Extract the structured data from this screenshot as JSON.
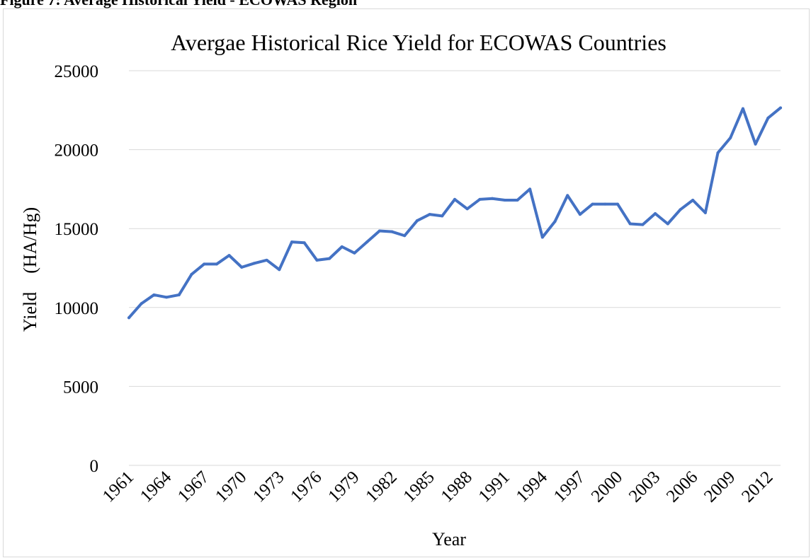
{
  "figure_caption": "Figure 7: Average Historical Yield - ECOWAS Region",
  "chart_data": {
    "type": "line",
    "title": "Avergae Historical Rice Yield for ECOWAS Countries",
    "xlabel": "Year",
    "ylabel": "Yield    (HA/Hg)",
    "ylim": [
      0,
      25000
    ],
    "yticks": [
      "0",
      "5000",
      "10000",
      "15000",
      "20000",
      "25000"
    ],
    "xticks": [
      "1961",
      "1964",
      "1967",
      "1970",
      "1973",
      "1976",
      "1979",
      "1982",
      "1985",
      "1988",
      "1991",
      "1994",
      "1997",
      "2000",
      "2003",
      "2006",
      "2009",
      "2012"
    ],
    "grid": true,
    "legend": "none",
    "color": "#4472C4",
    "x": [
      1961,
      1962,
      1963,
      1964,
      1965,
      1966,
      1967,
      1968,
      1969,
      1970,
      1971,
      1972,
      1973,
      1974,
      1975,
      1976,
      1977,
      1978,
      1979,
      1980,
      1981,
      1982,
      1983,
      1984,
      1985,
      1986,
      1987,
      1988,
      1989,
      1990,
      1991,
      1992,
      1993,
      1994,
      1995,
      1996,
      1997,
      1998,
      1999,
      2000,
      2001,
      2002,
      2003,
      2004,
      2005,
      2006,
      2007,
      2008,
      2009,
      2010,
      2011,
      2012,
      2013
    ],
    "values": [
      9350,
      10250,
      10800,
      10650,
      10800,
      12100,
      12750,
      12750,
      13300,
      12550,
      12800,
      13000,
      12400,
      14150,
      14100,
      13000,
      13100,
      13850,
      13450,
      14150,
      14850,
      14800,
      14550,
      15500,
      15900,
      15800,
      16850,
      16250,
      16850,
      16900,
      16800,
      16800,
      17500,
      14450,
      15450,
      17100,
      15900,
      16550,
      16550,
      16550,
      15300,
      15250,
      15950,
      15300,
      16200,
      16800,
      16000,
      19800,
      20750,
      22600,
      20350,
      22000,
      22650
    ]
  }
}
